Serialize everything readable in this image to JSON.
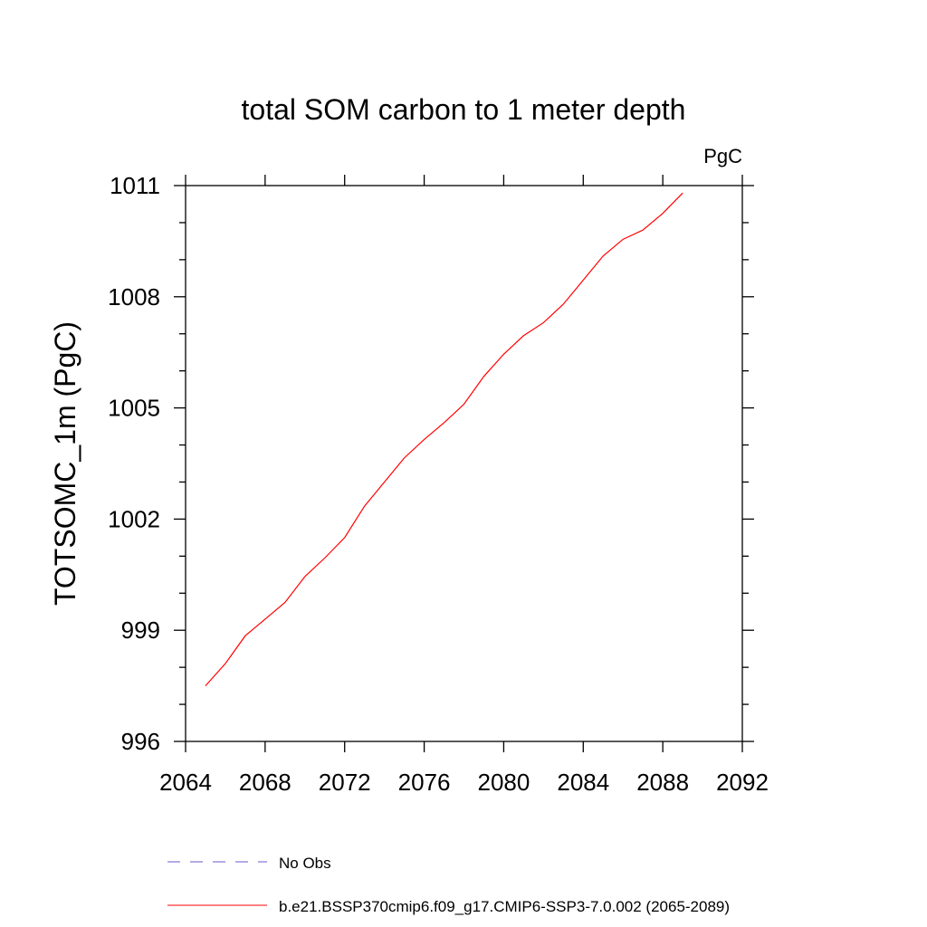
{
  "chart_data": {
    "type": "line",
    "title": "total SOM carbon to 1 meter depth",
    "units": "PgC",
    "ylabel": "TOTSOMC_1m  (PgC)",
    "xlabel": "",
    "xlim": [
      2064,
      2092
    ],
    "ylim": [
      996,
      1011
    ],
    "x_ticks": [
      2064,
      2068,
      2072,
      2076,
      2080,
      2084,
      2088,
      2092
    ],
    "y_ticks": [
      996,
      999,
      1002,
      1005,
      1008,
      1011
    ],
    "grid": false,
    "legend_position": "bottom",
    "series": [
      {
        "name": "b.e21.BSSP370cmip6.f09_g17.CMIP6-SSP3-7.0.002 (2065-2089)",
        "color": "#ff0000",
        "style": "solid",
        "x": [
          2065,
          2066,
          2067,
          2068,
          2069,
          2070,
          2071,
          2072,
          2073,
          2074,
          2075,
          2076,
          2077,
          2078,
          2079,
          2080,
          2081,
          2082,
          2083,
          2084,
          2085,
          2086,
          2087,
          2088,
          2089
        ],
        "y": [
          997.5,
          998.1,
          998.85,
          999.3,
          999.75,
          1000.45,
          1000.95,
          1001.5,
          1002.35,
          1003.0,
          1003.65,
          1004.15,
          1004.6,
          1005.1,
          1005.85,
          1006.45,
          1006.95,
          1007.3,
          1007.8,
          1008.45,
          1009.1,
          1009.55,
          1009.8,
          1010.25,
          1010.8
        ]
      }
    ],
    "legend": [
      {
        "label": "No Obs",
        "color": "#6a5acd",
        "style": "dashed"
      },
      {
        "label": "b.e21.BSSP370cmip6.f09_g17.CMIP6-SSP3-7.0.002 (2065-2089)",
        "color": "#ff0000",
        "style": "solid"
      }
    ]
  }
}
